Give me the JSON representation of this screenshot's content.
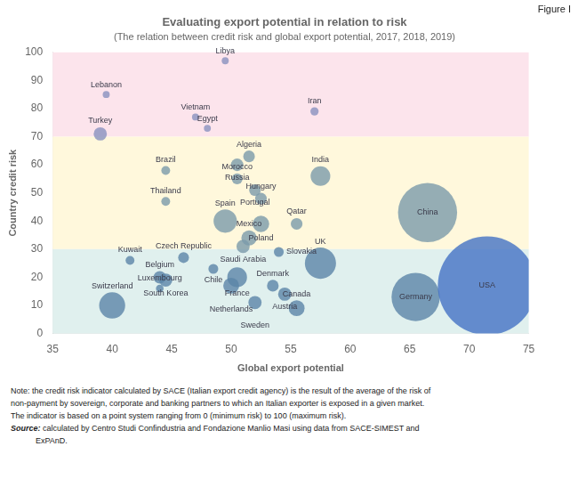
{
  "chart_data": {
    "type": "bubble",
    "title": "Evaluating export potential in relation to risk",
    "subtitle": "(The relation between credit risk and global export potential, 2017, 2018, 2019)",
    "figure_label": "Figure I",
    "xlabel": "Global export potential",
    "ylabel": "Country credit risk",
    "notes": [
      "Note: the credit risk indicator calculated by SACE (Italian export credit agency) is the result of the average of the risk of",
      "non-payment by sovereign, corporate and banking partners to which an Italian exporter is exposed in a given market.",
      "The indicator is based on a point system ranging from 0 (minimum risk) to 100 (maximum risk)."
    ],
    "source": [
      "Source: calculated by Centro Studi Confindustria and Fondazione Manlio Masi using data from SACE-SIMEST and",
      "ExPAnD."
    ],
    "xlim": [
      35,
      75
    ],
    "ylim": [
      0,
      100
    ],
    "xticks": [
      35,
      40,
      45,
      50,
      55,
      60,
      65,
      70,
      75
    ],
    "yticks": [
      0,
      10,
      20,
      30,
      40,
      50,
      60,
      70,
      80,
      90,
      100
    ],
    "grid": false,
    "zones": [
      {
        "from": 70,
        "to": 100,
        "color": "#fce4ec"
      },
      {
        "from": 30,
        "to": 70,
        "color": "#fff8dc"
      },
      {
        "from": 0,
        "to": 30,
        "color": "#e0f0ee"
      }
    ],
    "labels": [
      "Libya",
      "Lebanon",
      "Iran",
      "Vietnam",
      "Egypt",
      "Turkey",
      "Algeria",
      "Russia",
      "Brazil",
      "India",
      "Morocco",
      "Portugal",
      "Hungary",
      "Thailand",
      "China",
      "Spain",
      "Poland",
      "Qatar",
      "Mexico",
      "Saudi Arabia",
      "Slovakia",
      "Czech Republic",
      "Kuwait",
      "UK",
      "Chile",
      "Belgium",
      "South Korea",
      "France",
      "Netherlands",
      "Denmark",
      "Luxembourg",
      "Austria",
      "Sweden",
      "Canada",
      "Germany",
      "USA",
      "Switzerland"
    ],
    "x": [
      49.5,
      39.5,
      57.0,
      47.0,
      48.0,
      39.0,
      51.5,
      50.5,
      44.5,
      57.5,
      50.5,
      52.0,
      52.5,
      44.5,
      66.5,
      49.5,
      52.5,
      55.5,
      51.5,
      51.0,
      54.0,
      46.0,
      41.5,
      57.5,
      48.5,
      44.0,
      44.5,
      50.5,
      50.0,
      53.5,
      44.0,
      54.5,
      52.0,
      55.5,
      65.5,
      71.5,
      40.0
    ],
    "values": [
      97,
      85,
      79,
      77,
      73,
      71,
      63,
      60,
      58,
      56,
      55,
      51,
      48,
      47,
      43,
      40,
      39,
      39,
      34,
      31,
      29,
      27,
      26,
      25,
      23,
      20,
      19,
      20,
      17,
      17,
      16,
      14,
      11,
      9,
      13,
      17,
      10
    ],
    "sizes": [
      25,
      25,
      35,
      25,
      25,
      90,
      70,
      80,
      40,
      200,
      60,
      70,
      70,
      40,
      1800,
      280,
      140,
      70,
      120,
      90,
      50,
      60,
      40,
      500,
      50,
      80,
      90,
      200,
      130,
      70,
      30,
      90,
      90,
      130,
      1200,
      5000,
      350
    ],
    "colors": [
      "#8891bf",
      "#8891bf",
      "#8891bf",
      "#8891bf",
      "#8891bf",
      "#8891bf",
      "#7a9aaa",
      "#7a9aaa",
      "#7a9aaa",
      "#7a9aaa",
      "#7a9aaa",
      "#7a9aaa",
      "#7a9aaa",
      "#7a9aaa",
      "#7a9aaa",
      "#7a9aaa",
      "#7a9aaa",
      "#7a9aaa",
      "#7a9aaa",
      "#7a9aaa",
      "#5b84a8",
      "#5b84a8",
      "#5b84a8",
      "#5b84a8",
      "#5b84a8",
      "#5b84a8",
      "#5b84a8",
      "#5b84a8",
      "#5b84a8",
      "#5b84a8",
      "#5b84a8",
      "#5b84a8",
      "#5b84a8",
      "#5b84a8",
      "#5b84a8",
      "#4472c4",
      "#5b84a8"
    ]
  }
}
